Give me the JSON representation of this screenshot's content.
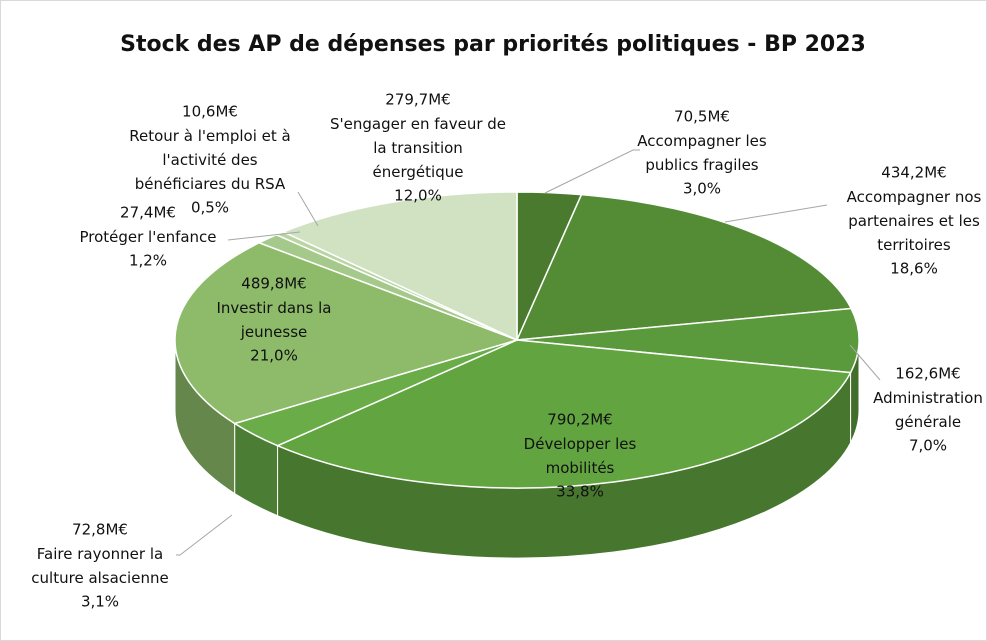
{
  "chart_data": {
    "type": "pie3d",
    "title": "Stock des AP de dépenses par priorités politiques - BP 2023",
    "categories": [
      "Accompagner les publics fragiles",
      "Accompagner nos partenaires et les territoires",
      "Administration générale",
      "Développer les mobilités",
      "Faire rayonner la culture alsacienne",
      "Investir dans la jeunesse",
      "Protéger l'enfance",
      "Retour à l'emploi et à l'activité des bénéficiares du RSA",
      "S'engager en faveur de la transition énergétique"
    ],
    "values": [
      70.5,
      434.2,
      162.6,
      790.2,
      72.8,
      489.8,
      27.4,
      10.6,
      279.7
    ],
    "value_labels": [
      "70,5M€",
      "434,2M€",
      "162,6M€",
      "790,2M€",
      "72,8M€",
      "489,8M€",
      "27,4M€",
      "10,6M€",
      "279,7M€"
    ],
    "percents": [
      3.0,
      18.6,
      7.0,
      33.8,
      3.1,
      21.0,
      1.2,
      0.5,
      12.0
    ],
    "percent_labels": [
      "3,0%",
      "18,6%",
      "7,0%",
      "33,8%",
      "3,1%",
      "21,0%",
      "1,2%",
      "0,5%",
      "12,0%"
    ],
    "colors": [
      "#4a7a2e",
      "#548c36",
      "#5a9a3c",
      "#62a540",
      "#6aad48",
      "#8dbb6a",
      "#a5c98a",
      "#b9d5a2",
      "#d0e2c2"
    ]
  }
}
